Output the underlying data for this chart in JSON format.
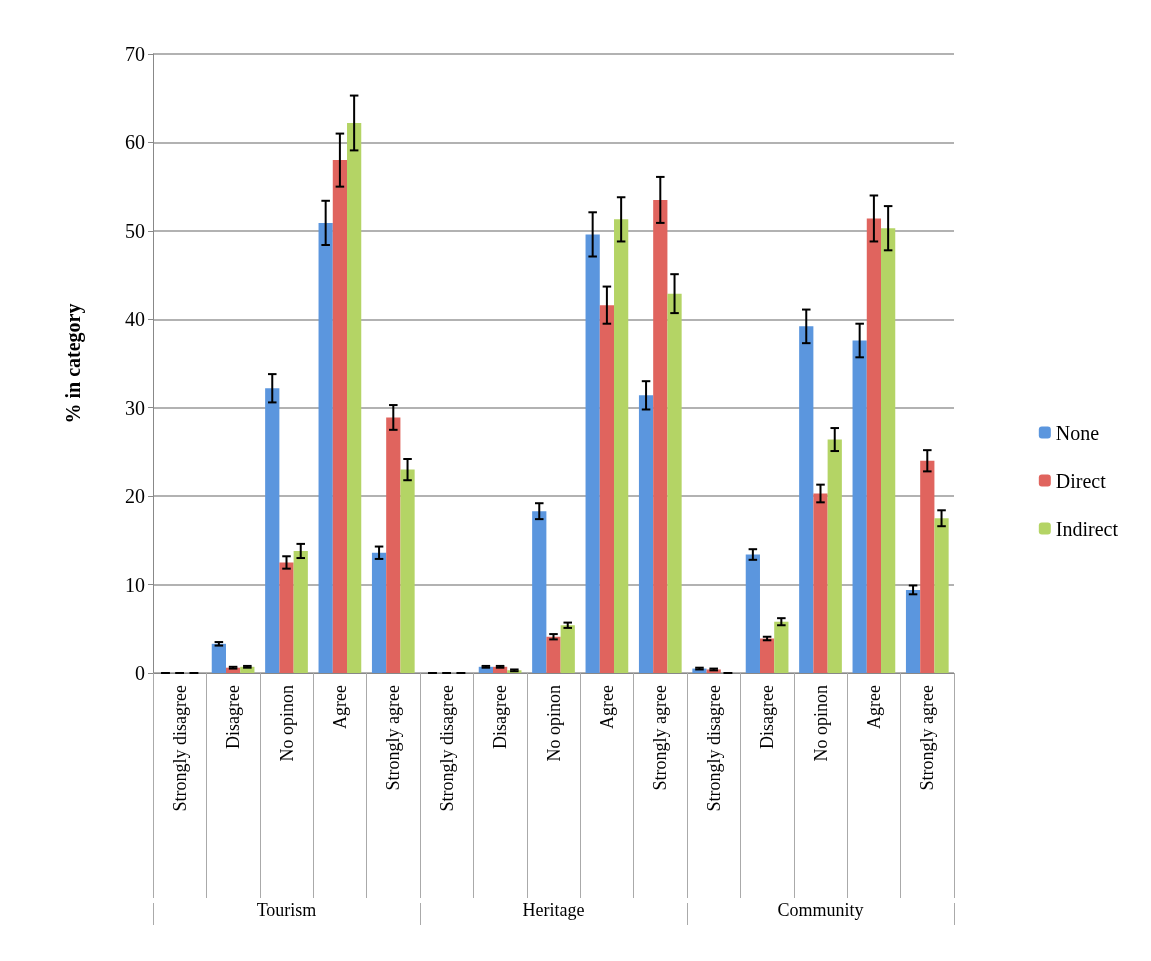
{
  "chart_data": {
    "type": "bar",
    "ylabel": "% in category",
    "categories": [
      "Strongly disagree",
      "Disagree",
      "No opinon",
      "Agree",
      "Strongly agree",
      "Strongly disagree",
      "Disagree",
      "No opinon",
      "Agree",
      "Strongly agree",
      "Strongly disagree",
      "Disagree",
      "No opinon",
      "Agree",
      "Strongly agree"
    ],
    "annotations": [
      "Tourism",
      "Heritage",
      "Community"
    ],
    "series": [
      {
        "name": "None",
        "color": "#5b96de",
        "values": [
          0,
          3.3,
          32.2,
          50.9,
          13.6,
          0,
          0.7,
          18.3,
          49.6,
          31.4,
          0.5,
          13.4,
          39.2,
          37.6,
          9.4
        ],
        "errors": [
          0,
          0.2,
          1.6,
          2.5,
          0.7,
          0,
          0.1,
          0.9,
          2.5,
          1.6,
          0.1,
          0.6,
          1.9,
          1.9,
          0.5
        ]
      },
      {
        "name": "Direct",
        "color": "#e0645e",
        "values": [
          0,
          0.6,
          12.5,
          58,
          28.9,
          0,
          0.7,
          4.1,
          41.6,
          53.5,
          0.4,
          3.9,
          20.3,
          51.4,
          24
        ],
        "errors": [
          0,
          0.1,
          0.7,
          3,
          1.4,
          0,
          0.1,
          0.3,
          2.1,
          2.6,
          0.1,
          0.2,
          1,
          2.6,
          1.2
        ]
      },
      {
        "name": "Indirect",
        "color": "#b4d465",
        "values": [
          0,
          0.7,
          13.8,
          62.2,
          23,
          0,
          0.3,
          5.4,
          51.3,
          42.9,
          0,
          5.8,
          26.4,
          50.3,
          17.5
        ],
        "errors": [
          0,
          0.1,
          0.8,
          3.1,
          1.2,
          0,
          0.1,
          0.3,
          2.5,
          2.2,
          0,
          0.4,
          1.3,
          2.5,
          0.9
        ]
      }
    ],
    "ylim": [
      0,
      70
    ],
    "yticks": [
      0,
      10,
      20,
      30,
      40,
      50,
      60,
      70
    ],
    "grid": "y",
    "legend": "right"
  }
}
